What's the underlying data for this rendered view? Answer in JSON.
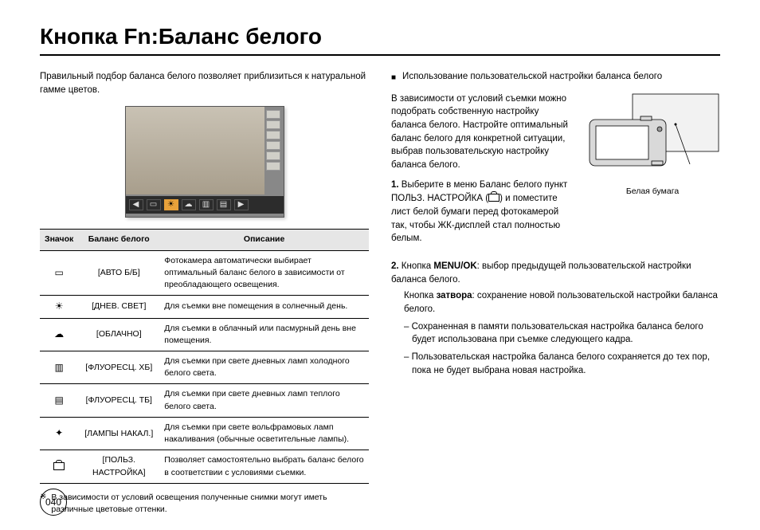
{
  "title": "Кнопка Fn:Баланс белого",
  "left": {
    "intro": "Правильный подбор баланса белого позволяет приблизиться к натуральной гамме цветов.",
    "table": {
      "headers": {
        "icon": "Значок",
        "mode": "Баланс белого",
        "desc": "Описание"
      },
      "rows": [
        {
          "icon": "▭",
          "icon_name": "auto-wb-icon",
          "mode": "[АВТО Б/Б]",
          "desc": "Фотокамера автоматически выбирает оптимальный баланс белого в зависимости от преобладающего освещения."
        },
        {
          "icon": "☀",
          "icon_name": "sun-icon",
          "mode": "[ДНЕВ. СВЕТ]",
          "desc": "Для съемки вне помещения в солнечный день."
        },
        {
          "icon": "☁",
          "icon_name": "cloud-icon",
          "mode": "[ОБЛАЧНО]",
          "desc": "Для съемки в облачный или пасмурный день вне помещения."
        },
        {
          "icon": "▥",
          "icon_name": "fluor-h-icon",
          "mode": "[ФЛУОРЕСЦ. ХБ]",
          "desc": "Для съемки при свете дневных ламп холодного белого света."
        },
        {
          "icon": "▤",
          "icon_name": "fluor-l-icon",
          "mode": "[ФЛУОРЕСЦ. ТБ]",
          "desc": "Для съемки при свете дневных ламп теплого белого света."
        },
        {
          "icon": "✦",
          "icon_name": "tungsten-icon",
          "mode": "[ЛАМПЫ НАКАЛ.]",
          "desc": "Для съемки при свете вольфрамовых ламп накаливания (обычные осветительные лампы)."
        },
        {
          "icon": "custom",
          "icon_name": "custom-wb-icon",
          "mode": "[ПОЛЬЗ. НАСТРОЙКА]",
          "desc": "Позволяет самостоятельно выбрать баланс белого в соответствии с условиями съемки."
        }
      ]
    },
    "footnote_mark": "※",
    "footnote": "В зависимости от условий освещения полученные снимки могут иметь различные цветовые оттенки."
  },
  "right": {
    "section_bullet": "■",
    "section_title": "Использование пользовательской настройки баланса белого",
    "para1": "В зависимости от условий съемки можно подобрать собственную настройку баланса белого. Настройте оптимальный баланс белого для конкретной ситуации, выбрав пользовательскую настройку баланса белого.",
    "step1_num": "1.",
    "step1a": "Выберите в меню Баланс белого пункт ПОЛЬЗ. НАСТРОЙКА (",
    "step1b": ") и поместите лист белой бумаги перед фотокамерой так, чтобы ЖК-дисплей стал полностью белым.",
    "caption": "Белая бумага",
    "step2_num": "2.",
    "step2_label_a": "Кнопка ",
    "step2_bold_a": "MENU/OK",
    "step2_text_a": ": выбор предыдущей пользовательской настройки баланса белого.",
    "step2_label_b": "Кнопка ",
    "step2_bold_b": "затвора",
    "step2_text_b": ": сохранение новой пользовательской настройки баланса белого.",
    "dash1": "– Сохраненная в памяти  пользовательская настройка баланса белого будет использована при съемке следующего кадра.",
    "dash2": "– Пользовательская настройка баланса белого сохраняется до тех пор, пока не будет выбрана новая настройка."
  },
  "page_number": "040",
  "colors": {
    "heading_border": "#000000",
    "table_header_bg": "#e6e6e6",
    "screenshot_bg": "#888888",
    "bar_active": "#e8a13a"
  }
}
